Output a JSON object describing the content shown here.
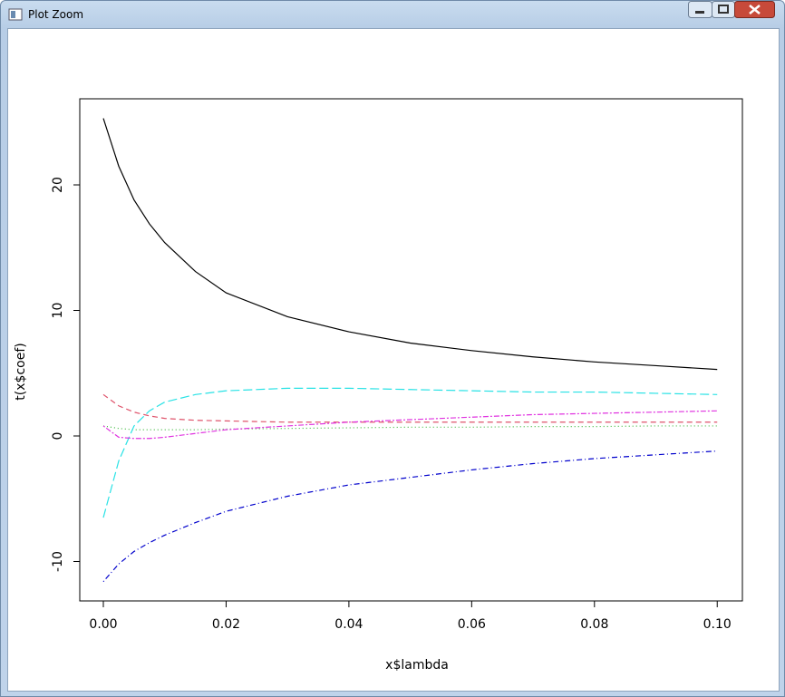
{
  "window": {
    "title": "Plot Zoom"
  },
  "chart_data": {
    "type": "line",
    "x_label": "x$lambda",
    "y_label": "t(x$coef)",
    "x": [
      0,
      0.0025,
      0.005,
      0.0075,
      0.01,
      0.015,
      0.02,
      0.03,
      0.04,
      0.05,
      0.06,
      0.07,
      0.08,
      0.09,
      0.1
    ],
    "series": [
      {
        "color": "#000000",
        "line_style": "solid",
        "values": [
          25.3,
          21.5,
          18.8,
          16.9,
          15.4,
          13.1,
          11.4,
          9.5,
          8.3,
          7.4,
          6.8,
          6.3,
          5.9,
          5.6,
          5.3
        ]
      },
      {
        "color": "#df536b",
        "line_style": "dashed",
        "values": [
          3.3,
          2.4,
          1.9,
          1.6,
          1.4,
          1.25,
          1.2,
          1.1,
          1.1,
          1.1,
          1.1,
          1.1,
          1.1,
          1.1,
          1.1
        ]
      },
      {
        "color": "#3cb83c",
        "line_style": "dotted",
        "values": [
          0.8,
          0.6,
          0.5,
          0.5,
          0.5,
          0.5,
          0.55,
          0.6,
          0.65,
          0.7,
          0.7,
          0.75,
          0.75,
          0.8,
          0.8
        ]
      },
      {
        "color": "#0000cc",
        "line_style": "dotdash",
        "values": [
          -11.6,
          -10.2,
          -9.2,
          -8.5,
          -7.9,
          -6.9,
          -6.0,
          -4.8,
          -3.9,
          -3.3,
          -2.7,
          -2.2,
          -1.8,
          -1.5,
          -1.2
        ]
      },
      {
        "color": "#28e2e5",
        "line_style": "longdash",
        "values": [
          -6.5,
          -2.0,
          0.8,
          2.0,
          2.7,
          3.3,
          3.6,
          3.8,
          3.8,
          3.7,
          3.6,
          3.5,
          3.5,
          3.4,
          3.3
        ]
      },
      {
        "color": "#e033e0",
        "line_style": "twodash",
        "values": [
          0.8,
          -0.1,
          -0.2,
          -0.2,
          -0.1,
          0.2,
          0.5,
          0.8,
          1.1,
          1.3,
          1.5,
          1.7,
          1.8,
          1.9,
          2.0
        ]
      }
    ],
    "xlim": [
      -0.00384,
      0.1041
    ],
    "ylim": [
      -13.14,
      26.86
    ],
    "xticks": [
      {
        "value": 0,
        "label": "0.00"
      },
      {
        "value": 0.02,
        "label": "0.02"
      },
      {
        "value": 0.04,
        "label": "0.04"
      },
      {
        "value": 0.06,
        "label": "0.06"
      },
      {
        "value": 0.08,
        "label": "0.08"
      },
      {
        "value": 0.1,
        "label": "0.10"
      }
    ],
    "yticks": [
      -10,
      0,
      10,
      20
    ]
  }
}
